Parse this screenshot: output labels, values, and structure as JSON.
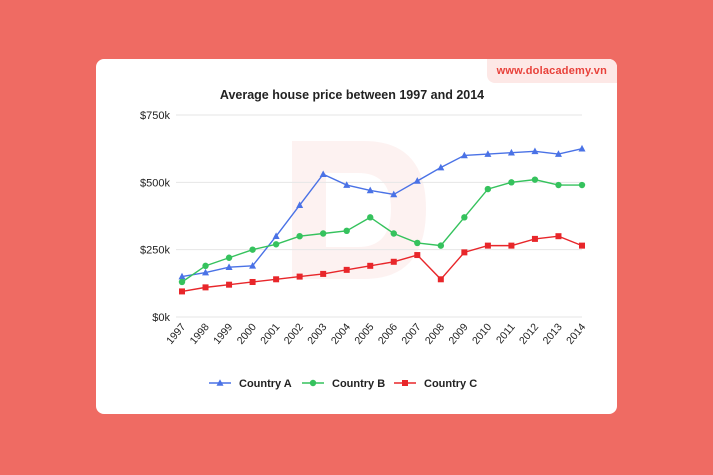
{
  "site": {
    "url_label": "www.dolacademy.vn"
  },
  "colors": {
    "background": "#ef6b63",
    "card": "#ffffff",
    "series": [
      "#4a72e6",
      "#35c25d",
      "#e8262a"
    ],
    "grid": "#e6e6e6",
    "text": "#222222"
  },
  "chart_data": {
    "type": "line",
    "title": "Average house price between 1997 and 2014",
    "xlabel": "",
    "ylabel": "",
    "x": [
      "1997",
      "1998",
      "1999",
      "2000",
      "2001",
      "2002",
      "2003",
      "2004",
      "2005",
      "2006",
      "2007",
      "2008",
      "2009",
      "2010",
      "2011",
      "2012",
      "2013",
      "2014"
    ],
    "y_ticks": [
      "$0k",
      "$250k",
      "$500k",
      "$750k"
    ],
    "ylim": [
      0,
      750
    ],
    "grid": true,
    "legend_position": "bottom",
    "series": [
      {
        "name": "Country A",
        "marker": "triangle",
        "values": [
          150,
          165,
          185,
          190,
          300,
          415,
          530,
          490,
          470,
          455,
          505,
          555,
          600,
          605,
          610,
          615,
          605,
          625
        ]
      },
      {
        "name": "Country B",
        "marker": "circle",
        "values": [
          130,
          190,
          220,
          250,
          270,
          300,
          310,
          320,
          370,
          310,
          275,
          265,
          370,
          475,
          500,
          510,
          490,
          490
        ]
      },
      {
        "name": "Country C",
        "marker": "square",
        "values": [
          95,
          110,
          120,
          130,
          140,
          150,
          160,
          175,
          190,
          205,
          230,
          140,
          240,
          265,
          265,
          290,
          300,
          265
        ]
      }
    ]
  }
}
